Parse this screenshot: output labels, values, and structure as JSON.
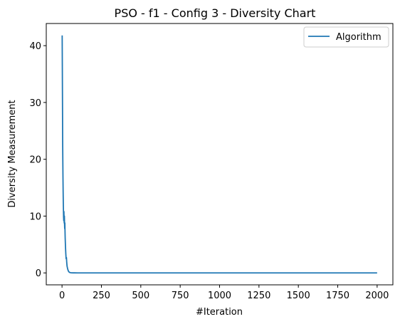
{
  "chart_data": {
    "type": "line",
    "title": "PSO - f1 - Config 3 - Diversity Chart",
    "xlabel": "#Iteration",
    "ylabel": "Diversity Measurement",
    "xlim": [
      -100,
      2100
    ],
    "ylim": [
      -2.1,
      43.9
    ],
    "xticks": [
      0,
      250,
      500,
      750,
      1000,
      1250,
      1500,
      1750,
      2000
    ],
    "yticks": [
      0,
      10,
      20,
      30,
      40
    ],
    "grid": false,
    "legend_position": "top-right",
    "series": [
      {
        "name": "Algorithm",
        "color": "#1f77b4",
        "x": [
          1,
          2,
          3,
          4,
          5,
          6,
          7,
          8,
          9,
          10,
          11,
          12,
          13,
          14,
          15,
          16,
          17,
          18,
          19,
          20,
          22,
          24,
          26,
          28,
          30,
          32,
          35,
          38,
          41,
          45,
          50,
          55,
          60,
          70,
          80,
          100,
          150,
          200,
          300,
          500,
          750,
          1000,
          1250,
          1500,
          1750,
          2000
        ],
        "y": [
          41.8,
          36.0,
          30.0,
          23.5,
          20.0,
          17.0,
          14.5,
          12.5,
          11.0,
          9.8,
          9.2,
          10.8,
          9.6,
          8.8,
          10.0,
          8.6,
          7.8,
          8.8,
          7.4,
          6.2,
          4.6,
          3.4,
          2.5,
          2.7,
          1.8,
          1.2,
          0.8,
          0.5,
          0.3,
          0.15,
          0.07,
          0.03,
          0.02,
          0.01,
          0.005,
          0.002,
          0,
          0,
          0,
          0,
          0,
          0,
          0,
          0,
          0,
          0
        ]
      }
    ]
  }
}
